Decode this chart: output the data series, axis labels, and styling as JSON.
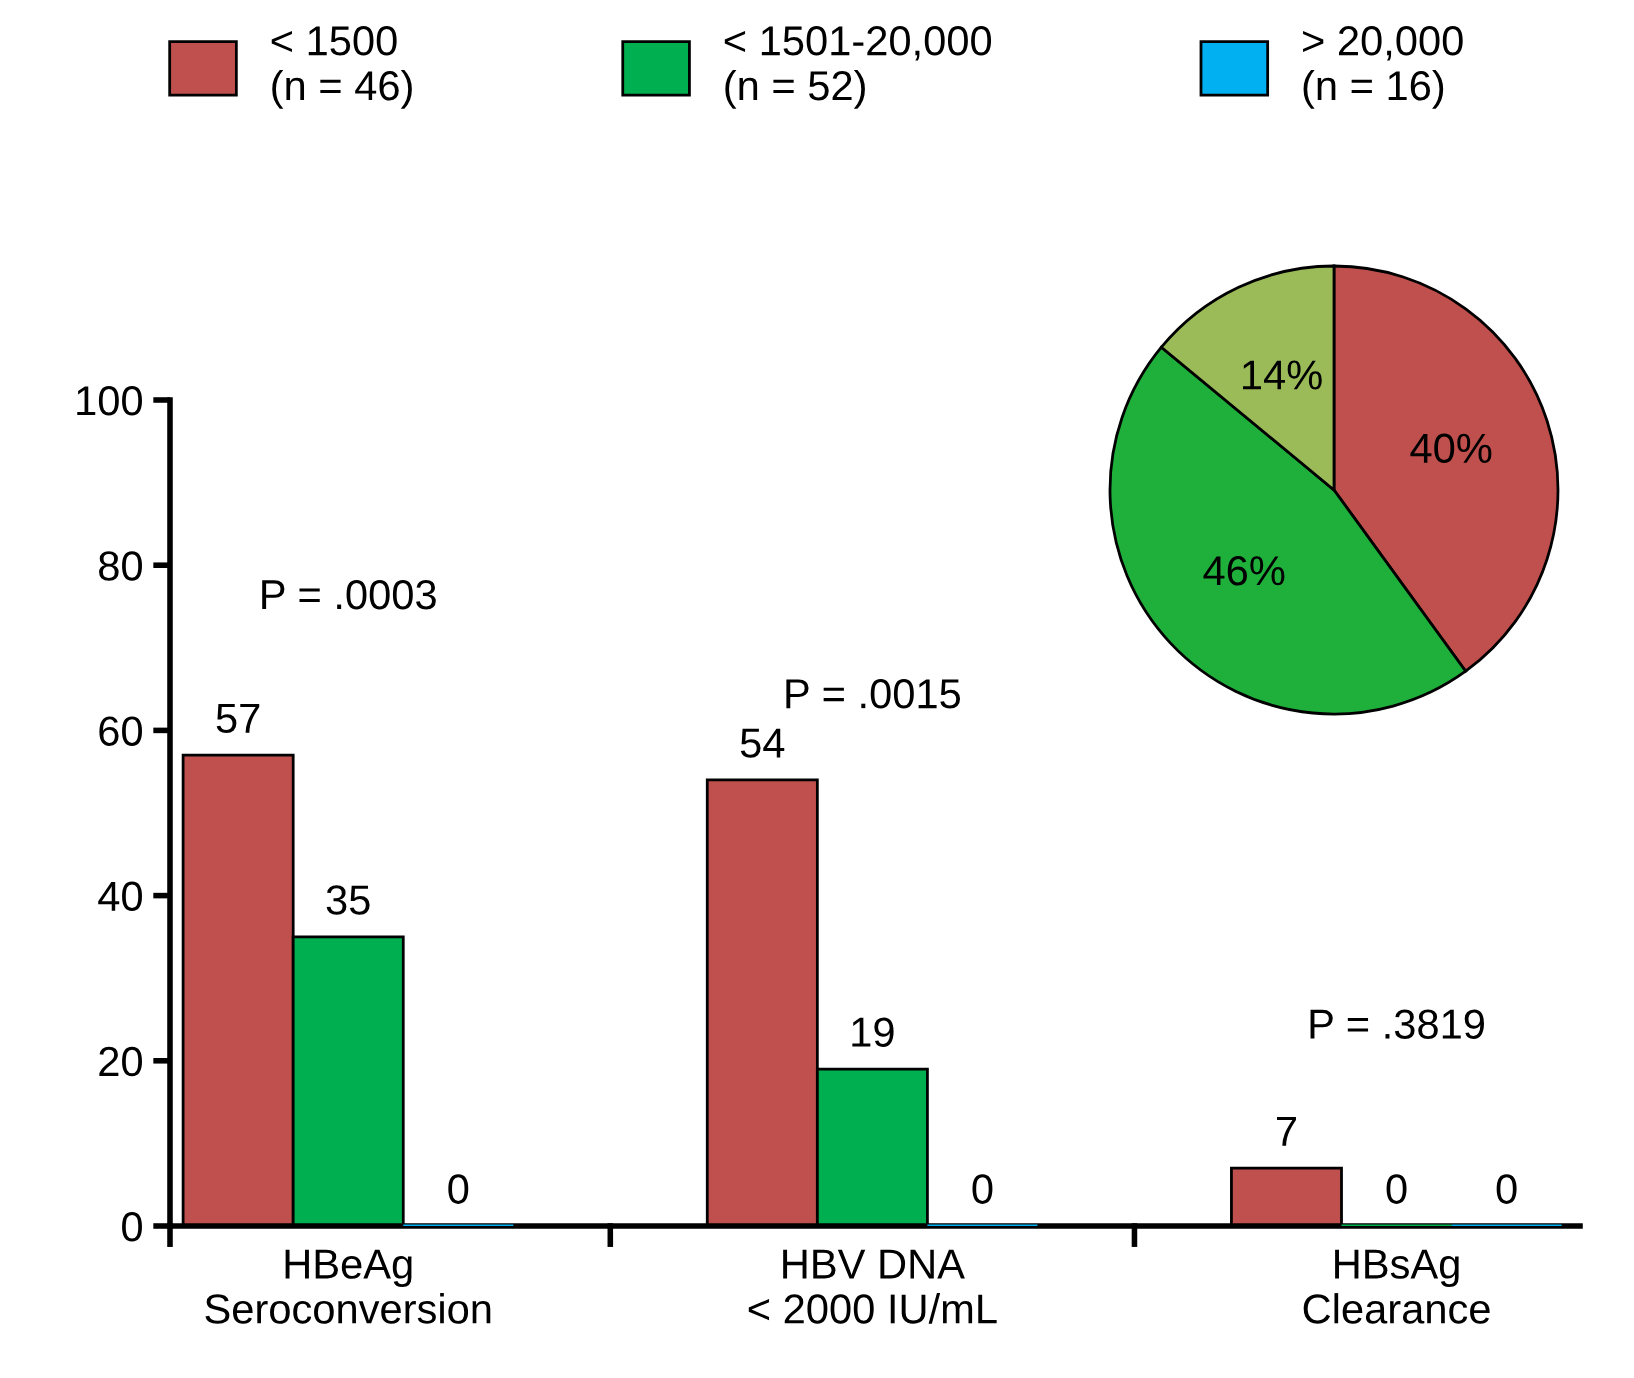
{
  "chart_data": [
    {
      "type": "bar",
      "categories": [
        "HBeAg\nSeroconversion",
        "HBV DNA\n< 2000 IU/mL",
        "HBsAg\nClearance"
      ],
      "series": [
        {
          "name": "< 1500\n(n = 46)",
          "color": "#c0504d",
          "values": [
            57,
            54,
            7
          ]
        },
        {
          "name": "< 1501-20,000\n(n = 52)",
          "color": "#00b050",
          "values": [
            35,
            19,
            0
          ]
        },
        {
          "name": "> 20,000\n(n = 16)",
          "color": "#00b0f0",
          "values": [
            0,
            0,
            0
          ]
        }
      ],
      "ylim": [
        0,
        100
      ],
      "yticks": [
        0,
        20,
        40,
        60,
        80,
        100
      ],
      "data_labels": true,
      "grid": false,
      "legend": "top",
      "annotations": [
        "P = .0003",
        "P = .0015",
        "P = .3819"
      ]
    },
    {
      "type": "pie",
      "categories": [
        null,
        null,
        null
      ],
      "values": [
        40,
        46,
        14
      ],
      "value_labels": [
        "40%",
        "46%",
        "14%"
      ],
      "colors": [
        "#c0504d",
        "#1fb03c",
        "#9bbb59"
      ]
    }
  ]
}
